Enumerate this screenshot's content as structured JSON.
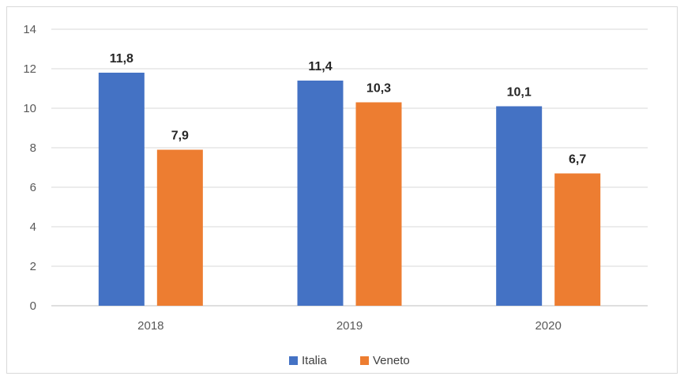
{
  "chart_data": {
    "type": "bar",
    "categories": [
      "2018",
      "2019",
      "2020"
    ],
    "series": [
      {
        "name": "Italia",
        "values": [
          11.8,
          11.4,
          10.1
        ],
        "labels": [
          "11,8",
          "11,4",
          "10,1"
        ],
        "color": "#4472C4"
      },
      {
        "name": "Veneto",
        "values": [
          7.9,
          10.3,
          6.7
        ],
        "labels": [
          "7,9",
          "10,3",
          "6,7"
        ],
        "color": "#ED7D31"
      }
    ],
    "ylim": [
      0,
      14
    ],
    "yticks": [
      0,
      2,
      4,
      6,
      8,
      10,
      12,
      14
    ],
    "grid": true,
    "legend": "bottom",
    "title": "",
    "xlabel": "",
    "ylabel": ""
  }
}
